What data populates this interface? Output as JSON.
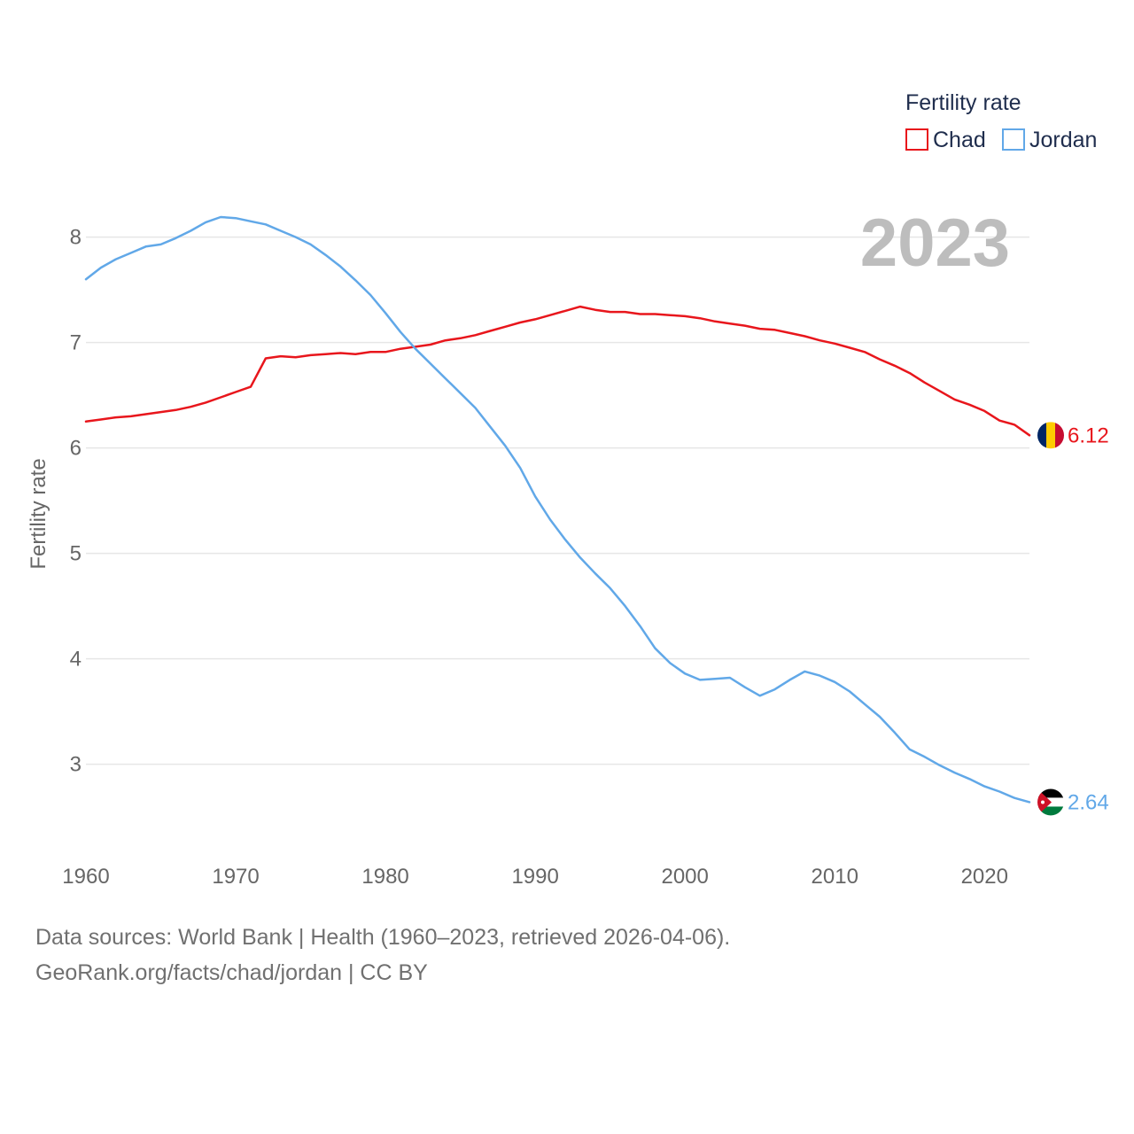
{
  "chart_data": {
    "type": "line",
    "ylabel": "Fertility rate",
    "xlabel": "",
    "xlim": [
      1960,
      2023
    ],
    "ylim": [
      2.4,
      8.4
    ],
    "yticks": [
      3,
      4,
      5,
      6,
      7,
      8
    ],
    "xticks": [
      1960,
      1970,
      1980,
      1990,
      2000,
      2010,
      2020
    ],
    "grid": true,
    "legend": {
      "title": "Fertility rate",
      "position": "top-right"
    },
    "year_label": "2023",
    "x": [
      1960,
      1961,
      1962,
      1963,
      1964,
      1965,
      1966,
      1967,
      1968,
      1969,
      1970,
      1971,
      1972,
      1973,
      1974,
      1975,
      1976,
      1977,
      1978,
      1979,
      1980,
      1981,
      1982,
      1983,
      1984,
      1985,
      1986,
      1987,
      1988,
      1989,
      1990,
      1991,
      1992,
      1993,
      1994,
      1995,
      1996,
      1997,
      1998,
      1999,
      2000,
      2001,
      2002,
      2003,
      2004,
      2005,
      2006,
      2007,
      2008,
      2009,
      2010,
      2011,
      2012,
      2013,
      2014,
      2015,
      2016,
      2017,
      2018,
      2019,
      2020,
      2021,
      2022,
      2023
    ],
    "series": [
      {
        "name": "Chad",
        "color": "#e8161c",
        "end_value": "6.12",
        "flag": "chad-flag",
        "values": [
          6.25,
          6.27,
          6.29,
          6.3,
          6.32,
          6.34,
          6.36,
          6.39,
          6.43,
          6.48,
          6.53,
          6.58,
          6.85,
          6.87,
          6.86,
          6.88,
          6.89,
          6.9,
          6.89,
          6.91,
          6.91,
          6.94,
          6.96,
          6.98,
          7.02,
          7.04,
          7.07,
          7.11,
          7.15,
          7.19,
          7.22,
          7.26,
          7.3,
          7.34,
          7.31,
          7.29,
          7.29,
          7.27,
          7.27,
          7.26,
          7.25,
          7.23,
          7.2,
          7.18,
          7.16,
          7.13,
          7.12,
          7.09,
          7.06,
          7.02,
          6.99,
          6.95,
          6.91,
          6.84,
          6.78,
          6.71,
          6.62,
          6.54,
          6.46,
          6.41,
          6.35,
          6.26,
          6.22,
          6.12
        ]
      },
      {
        "name": "Jordan",
        "color": "#61a8e8",
        "end_value": "2.64",
        "flag": "jordan-flag",
        "values": [
          7.6,
          7.71,
          7.79,
          7.85,
          7.91,
          7.93,
          7.99,
          8.06,
          8.14,
          8.19,
          8.18,
          8.15,
          8.12,
          8.06,
          8.0,
          7.93,
          7.83,
          7.72,
          7.59,
          7.45,
          7.28,
          7.1,
          6.94,
          6.8,
          6.66,
          6.52,
          6.38,
          6.2,
          6.02,
          5.81,
          5.54,
          5.32,
          5.13,
          4.96,
          4.81,
          4.67,
          4.5,
          4.31,
          4.1,
          3.96,
          3.86,
          3.8,
          3.81,
          3.82,
          3.73,
          3.65,
          3.71,
          3.8,
          3.88,
          3.84,
          3.78,
          3.69,
          3.57,
          3.45,
          3.3,
          3.14,
          3.07,
          2.99,
          2.92,
          2.86,
          2.79,
          2.74,
          2.68,
          2.64
        ]
      }
    ]
  },
  "footer": {
    "line1": "Data sources: World Bank | Health (1960–2023, retrieved 2026-04-06).",
    "line2": "GeoRank.org/facts/chad/jordan | CC BY"
  }
}
